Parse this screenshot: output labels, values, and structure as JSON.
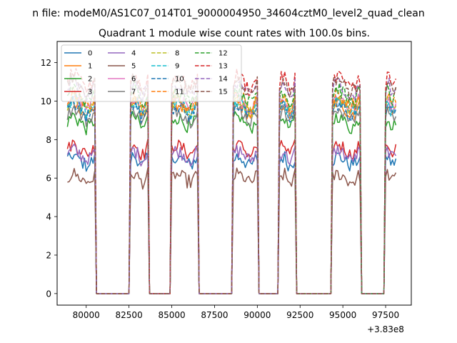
{
  "chart_data": {
    "type": "line",
    "suptitle": "n file: modeM0/AS1C07_014T01_9000004950_34604cztM0_level2_quad_clean",
    "title": "Quadrant 1 module wise count rates with 100.0s bins.",
    "xlabel": "",
    "ylabel": "",
    "x_offset_label": "+3.83e8",
    "xlim": [
      78300,
      99000
    ],
    "ylim": [
      -0.6,
      13.1
    ],
    "x_ticks": [
      80000,
      82500,
      85000,
      87500,
      90000,
      92500,
      95000,
      97500
    ],
    "x_tick_labels": [
      "80000",
      "82500",
      "85000",
      "87500",
      "90000",
      "92500",
      "95000",
      "97500"
    ],
    "y_ticks": [
      0,
      2,
      4,
      6,
      8,
      10,
      12
    ],
    "y_tick_labels": [
      "0",
      "2",
      "4",
      "6",
      "8",
      "10",
      "12"
    ],
    "bin_seconds": 100,
    "on_intervals": [
      [
        78900,
        80500
      ],
      [
        82600,
        83600
      ],
      [
        85000,
        86500
      ],
      [
        88600,
        90000
      ],
      [
        91300,
        92200
      ],
      [
        94400,
        96000
      ],
      [
        97500,
        98100
      ]
    ],
    "legend": {
      "location": "upper-left",
      "columns": 4
    },
    "series": [
      {
        "name": "0",
        "color": "#1f77b4",
        "dashed": false,
        "level": 6.9
      },
      {
        "name": "1",
        "color": "#ff7f0e",
        "dashed": false,
        "level": 9.6
      },
      {
        "name": "2",
        "color": "#2ca02c",
        "dashed": false,
        "level": 8.9
      },
      {
        "name": "3",
        "color": "#d62728",
        "dashed": false,
        "level": 7.5
      },
      {
        "name": "4",
        "color": "#9467bd",
        "dashed": false,
        "level": 7.2
      },
      {
        "name": "5",
        "color": "#8c564b",
        "dashed": false,
        "level": 6.0
      },
      {
        "name": "6",
        "color": "#e377c2",
        "dashed": false,
        "level": 9.9
      },
      {
        "name": "7",
        "color": "#7f7f7f",
        "dashed": false,
        "level": 9.3
      },
      {
        "name": "8",
        "color": "#bcbd22",
        "dashed": true,
        "level": 9.8
      },
      {
        "name": "9",
        "color": "#17becf",
        "dashed": true,
        "level": 9.7
      },
      {
        "name": "10",
        "color": "#1f77b4",
        "dashed": true,
        "level": 9.5
      },
      {
        "name": "11",
        "color": "#ff7f0e",
        "dashed": true,
        "level": 10.0
      },
      {
        "name": "12",
        "color": "#2ca02c",
        "dashed": true,
        "level": 10.3
      },
      {
        "name": "13",
        "color": "#d62728",
        "dashed": true,
        "level": 11.0
      },
      {
        "name": "14",
        "color": "#9467bd",
        "dashed": true,
        "level": 10.6
      },
      {
        "name": "15",
        "color": "#8c564b",
        "dashed": true,
        "level": 10.8
      }
    ]
  }
}
